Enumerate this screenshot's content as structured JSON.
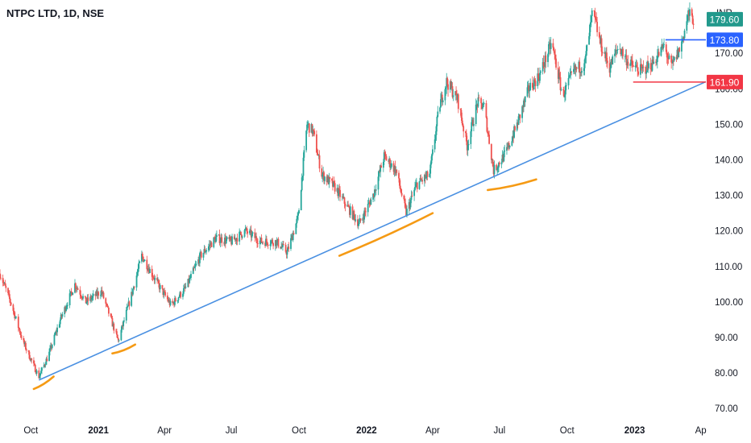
{
  "header": {
    "title": "NTPC LTD, 1D, NSE"
  },
  "colors": {
    "up": "#26a69a",
    "down": "#ef5350",
    "trendline": "#4a90e2",
    "highlight": "#f59a14",
    "last_price_tag": "#22998c",
    "resistance_tag": "#2962ff",
    "support_tag": "#f23645"
  },
  "chart_data": {
    "type": "candlestick",
    "currency": "INR",
    "ylim": [
      68,
      185
    ],
    "y_ticks": [
      70,
      80,
      90,
      100,
      110,
      120,
      130,
      140,
      150,
      160,
      170
    ],
    "y_tick_labels": [
      "70.00",
      "80.00",
      "90.00",
      "100.00",
      "110.00",
      "120.00",
      "130.00",
      "140.00",
      "150.00",
      "160.00",
      "170.00"
    ],
    "x_range": [
      "2020-08-20",
      "2023-04-08"
    ],
    "x_ticks": [
      {
        "date": "2020-10-01",
        "label": "Oct",
        "bold": false
      },
      {
        "date": "2021-01-01",
        "label": "2021",
        "bold": true
      },
      {
        "date": "2021-04-01",
        "label": "Apr",
        "bold": false
      },
      {
        "date": "2021-07-01",
        "label": "Jul",
        "bold": false
      },
      {
        "date": "2021-10-01",
        "label": "Oct",
        "bold": false
      },
      {
        "date": "2022-01-01",
        "label": "2022",
        "bold": true
      },
      {
        "date": "2022-04-01",
        "label": "Apr",
        "bold": false
      },
      {
        "date": "2022-07-01",
        "label": "Jul",
        "bold": false
      },
      {
        "date": "2022-10-01",
        "label": "Oct",
        "bold": false
      },
      {
        "date": "2023-01-01",
        "label": "2023",
        "bold": true
      },
      {
        "date": "2023-04-01",
        "label": "Ap",
        "bold": false
      }
    ],
    "price_anchors": [
      [
        "2020-08-20",
        108
      ],
      [
        "2020-09-05",
        99
      ],
      [
        "2020-09-20",
        89
      ],
      [
        "2020-10-05",
        82
      ],
      [
        "2020-10-12",
        79
      ],
      [
        "2020-10-25",
        85
      ],
      [
        "2020-11-10",
        95
      ],
      [
        "2020-11-30",
        105
      ],
      [
        "2020-12-15",
        100
      ],
      [
        "2021-01-05",
        103
      ],
      [
        "2021-01-28",
        89
      ],
      [
        "2021-02-15",
        102
      ],
      [
        "2021-03-01",
        113
      ],
      [
        "2021-03-20",
        106
      ],
      [
        "2021-04-10",
        99
      ],
      [
        "2021-04-30",
        104
      ],
      [
        "2021-05-20",
        113
      ],
      [
        "2021-06-10",
        118
      ],
      [
        "2021-07-01",
        117
      ],
      [
        "2021-07-20",
        120
      ],
      [
        "2021-08-10",
        117
      ],
      [
        "2021-08-31",
        117
      ],
      [
        "2021-09-15",
        114
      ],
      [
        "2021-09-30",
        124
      ],
      [
        "2021-10-12",
        150
      ],
      [
        "2021-10-20",
        148
      ],
      [
        "2021-11-01",
        136
      ],
      [
        "2021-11-20",
        132
      ],
      [
        "2021-12-05",
        127
      ],
      [
        "2021-12-22",
        122
      ],
      [
        "2022-01-10",
        130
      ],
      [
        "2022-01-25",
        141
      ],
      [
        "2022-02-10",
        137
      ],
      [
        "2022-02-24",
        125
      ],
      [
        "2022-03-10",
        133
      ],
      [
        "2022-03-28",
        136
      ],
      [
        "2022-04-10",
        155
      ],
      [
        "2022-04-20",
        162
      ],
      [
        "2022-05-05",
        157
      ],
      [
        "2022-05-18",
        144
      ],
      [
        "2022-06-01",
        156
      ],
      [
        "2022-06-10",
        155
      ],
      [
        "2022-06-23",
        137
      ],
      [
        "2022-07-10",
        142
      ],
      [
        "2022-07-25",
        150
      ],
      [
        "2022-08-10",
        160
      ],
      [
        "2022-08-25",
        164
      ],
      [
        "2022-09-10",
        173
      ],
      [
        "2022-09-25",
        158
      ],
      [
        "2022-10-10",
        165
      ],
      [
        "2022-10-25",
        167
      ],
      [
        "2022-11-05",
        182
      ],
      [
        "2022-11-15",
        173
      ],
      [
        "2022-11-28",
        166
      ],
      [
        "2022-12-10",
        172
      ],
      [
        "2022-12-25",
        167
      ],
      [
        "2023-01-10",
        165
      ],
      [
        "2023-01-25",
        167
      ],
      [
        "2023-02-10",
        172
      ],
      [
        "2023-02-20",
        166
      ],
      [
        "2023-03-05",
        172
      ],
      [
        "2023-03-15",
        181
      ],
      [
        "2023-03-22",
        179.6
      ]
    ],
    "trendline": {
      "from": [
        "2020-10-12",
        78
      ],
      "to": [
        "2023-04-08",
        162
      ]
    },
    "resistance": {
      "value": 173.8,
      "label": "173.80",
      "from": "2023-02-12"
    },
    "support": {
      "value": 161.9,
      "label": "161.90",
      "from": "2022-12-30"
    },
    "last_price": {
      "value": 179.6,
      "label": "179.60"
    },
    "highlight_marks": [
      {
        "from": [
          "2020-10-05",
          75.5
        ],
        "to": [
          "2020-11-01",
          79
        ]
      },
      {
        "from": [
          "2021-01-20",
          85.5
        ],
        "to": [
          "2021-02-20",
          88
        ]
      },
      {
        "from": [
          "2021-11-25",
          113
        ],
        "to": [
          "2022-04-01",
          125
        ]
      },
      {
        "from": [
          "2022-06-15",
          131.5
        ],
        "to": [
          "2022-08-20",
          134.5
        ]
      }
    ]
  }
}
